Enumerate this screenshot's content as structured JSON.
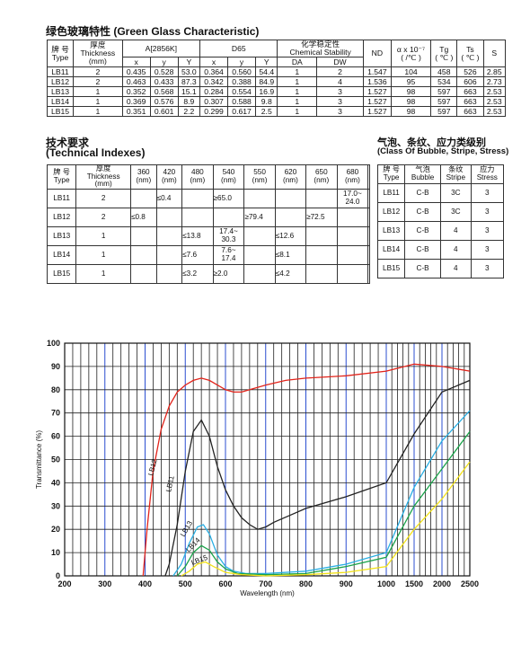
{
  "char_title": "绿色玻璃特性 (Green Glass Characteristic)",
  "char_table": {
    "h_grade_cn": "牌 号",
    "h_grade_en": "Type",
    "h_thick_cn": "厚度",
    "h_thick_en": "Thickness",
    "h_thick_unit": "(mm)",
    "h_a": "A[2856K]",
    "h_d65": "D65",
    "h_chem_cn": "化学稳定性",
    "h_chem_en": "Chemical Stability",
    "h_nd": "ND",
    "h_alpha": "α x 10⁻⁷",
    "h_alpha_unit": "( /℃ )",
    "h_tg": "Tg",
    "h_tg_unit": "( ℃ )",
    "h_ts": "Ts",
    "h_ts_unit": "( ℃ )",
    "h_s": "S",
    "sub_x": "x",
    "sub_y": "y",
    "sub_Y": "Y",
    "sub_da": "DA",
    "sub_dw": "DW",
    "rows": [
      [
        "LB11",
        "2",
        "0.435",
        "0.528",
        "53.0",
        "0.364",
        "0.560",
        "54.4",
        "1",
        "2",
        "1.547",
        "104",
        "458",
        "526",
        "2.85"
      ],
      [
        "LB12",
        "2",
        "0.463",
        "0.433",
        "87.3",
        "0.342",
        "0.388",
        "84.9",
        "1",
        "4",
        "1.536",
        "95",
        "534",
        "606",
        "2.73"
      ],
      [
        "LB13",
        "1",
        "0.352",
        "0.568",
        "15.1",
        "0.284",
        "0.554",
        "16.9",
        "1",
        "3",
        "1.527",
        "98",
        "597",
        "663",
        "2.53"
      ],
      [
        "LB14",
        "1",
        "0.369",
        "0.576",
        "8.9",
        "0.307",
        "0.588",
        "9.8",
        "1",
        "3",
        "1.527",
        "98",
        "597",
        "663",
        "2.53"
      ],
      [
        "LB15",
        "1",
        "0.351",
        "0.601",
        "2.2",
        "0.299",
        "0.617",
        "2.5",
        "1",
        "3",
        "1.527",
        "98",
        "597",
        "663",
        "2.53"
      ]
    ]
  },
  "tech_title_cn": "技术要求",
  "tech_title_en": "(Technical Indexes)",
  "tech_table": {
    "h_grade_cn": "牌 号",
    "h_grade_en": "Type",
    "h_thick_cn": "厚度",
    "h_thick_en": "Thickness",
    "h_thick_unit": "(mm)",
    "wavelengths": [
      "360",
      "420",
      "480",
      "540",
      "550",
      "620",
      "650",
      "680"
    ],
    "unit": "(nm)",
    "rows": [
      [
        "LB11",
        "2",
        "",
        "≤0.4",
        "",
        "≥65.0",
        "",
        "",
        "",
        "17.0~\n24.0"
      ],
      [
        "LB12",
        "2",
        "≤0.8",
        "",
        "",
        "",
        "≥79.4",
        "",
        "≥72.5",
        ""
      ],
      [
        "LB13",
        "1",
        "",
        "",
        "≤13.8",
        "17.4~\n30.3",
        "",
        "≤12.6",
        "",
        ""
      ],
      [
        "LB14",
        "1",
        "",
        "",
        "≤7.6",
        "7.6~\n17.4",
        "",
        "≤8.1",
        "",
        ""
      ],
      [
        "LB15",
        "1",
        "",
        "",
        "≤3.2",
        "≥2.0",
        "",
        "≤4.2",
        "",
        ""
      ]
    ]
  },
  "bubble_title_cn": "气泡、条纹、应力类级别",
  "bubble_title_en": "(Class Of Bubble, Stripe, Stress)",
  "bubble_table": {
    "h_grade_cn": "牌 号",
    "h_grade_en": "Type",
    "h_bubble_cn": "气泡",
    "h_bubble_en": "Bubble",
    "h_stripe_cn": "条纹",
    "h_stripe_en": "Stripe",
    "h_stress_cn": "应力",
    "h_stress_en": "Stress",
    "rows": [
      [
        "LB11",
        "C-B",
        "3C",
        "3"
      ],
      [
        "LB12",
        "C-B",
        "3C",
        "3"
      ],
      [
        "LB13",
        "C-B",
        "4",
        "3"
      ],
      [
        "LB14",
        "C-B",
        "4",
        "3"
      ],
      [
        "LB15",
        "C-B",
        "4",
        "3"
      ]
    ]
  },
  "chart_data": {
    "type": "line",
    "xlabel": "Wavelength (nm)",
    "ylabel": "Transmittance (%)",
    "x_ticks": [
      "200",
      "300",
      "400",
      "500",
      "600",
      "700",
      "800",
      "900",
      "1000",
      "1500",
      "2000",
      "2500"
    ],
    "y_ticks": [
      "0",
      "10",
      "20",
      "30",
      "40",
      "50",
      "60",
      "70",
      "80",
      "90",
      "100"
    ],
    "ylim": [
      0,
      100
    ],
    "grid": true,
    "series": [
      {
        "name": "LB12",
        "color": "#e2231a",
        "points": [
          [
            395,
            0
          ],
          [
            405,
            20
          ],
          [
            420,
            45
          ],
          [
            440,
            63
          ],
          [
            460,
            73
          ],
          [
            480,
            79
          ],
          [
            500,
            82
          ],
          [
            520,
            84
          ],
          [
            540,
            85
          ],
          [
            560,
            84
          ],
          [
            580,
            82
          ],
          [
            600,
            80
          ],
          [
            620,
            79
          ],
          [
            640,
            79
          ],
          [
            660,
            80
          ],
          [
            700,
            82
          ],
          [
            750,
            84
          ],
          [
            800,
            85
          ],
          [
            850,
            85.5
          ],
          [
            900,
            86
          ],
          [
            1000,
            88
          ],
          [
            1500,
            91
          ],
          [
            2000,
            90
          ],
          [
            2500,
            88
          ]
        ]
      },
      {
        "name": "LB11",
        "color": "#222222",
        "points": [
          [
            450,
            0
          ],
          [
            460,
            5
          ],
          [
            480,
            22
          ],
          [
            500,
            45
          ],
          [
            520,
            62
          ],
          [
            540,
            67
          ],
          [
            560,
            60
          ],
          [
            580,
            47
          ],
          [
            600,
            37
          ],
          [
            620,
            30
          ],
          [
            640,
            25
          ],
          [
            660,
            22
          ],
          [
            680,
            20
          ],
          [
            700,
            21
          ],
          [
            720,
            23
          ],
          [
            760,
            26
          ],
          [
            800,
            29
          ],
          [
            900,
            34
          ],
          [
            1000,
            40
          ],
          [
            1500,
            61
          ],
          [
            2000,
            79
          ],
          [
            2500,
            84
          ]
        ]
      },
      {
        "name": "LB13",
        "color": "#29aee3",
        "points": [
          [
            470,
            0
          ],
          [
            490,
            5
          ],
          [
            510,
            14
          ],
          [
            530,
            21
          ],
          [
            545,
            22
          ],
          [
            560,
            18
          ],
          [
            580,
            9
          ],
          [
            600,
            4
          ],
          [
            620,
            2
          ],
          [
            650,
            1
          ],
          [
            700,
            1
          ],
          [
            800,
            2
          ],
          [
            900,
            5
          ],
          [
            1000,
            10
          ],
          [
            1500,
            38
          ],
          [
            2000,
            58
          ],
          [
            2500,
            71
          ]
        ]
      },
      {
        "name": "LB14",
        "color": "#1aa34a",
        "points": [
          [
            480,
            0
          ],
          [
            500,
            4
          ],
          [
            520,
            10
          ],
          [
            540,
            13
          ],
          [
            560,
            11
          ],
          [
            580,
            6
          ],
          [
            600,
            3
          ],
          [
            630,
            1
          ],
          [
            700,
            0.5
          ],
          [
            800,
            1
          ],
          [
            900,
            4
          ],
          [
            1000,
            8
          ],
          [
            1500,
            30
          ],
          [
            2000,
            46
          ],
          [
            2500,
            62
          ]
        ]
      },
      {
        "name": "LB15",
        "color": "#f2e21a",
        "points": [
          [
            490,
            0
          ],
          [
            510,
            2
          ],
          [
            530,
            5
          ],
          [
            550,
            6
          ],
          [
            570,
            4
          ],
          [
            600,
            1.5
          ],
          [
            640,
            0.5
          ],
          [
            700,
            0
          ],
          [
            800,
            0.5
          ],
          [
            900,
            1.5
          ],
          [
            1000,
            4
          ],
          [
            1500,
            20
          ],
          [
            2000,
            33
          ],
          [
            2500,
            49
          ]
        ]
      }
    ]
  }
}
